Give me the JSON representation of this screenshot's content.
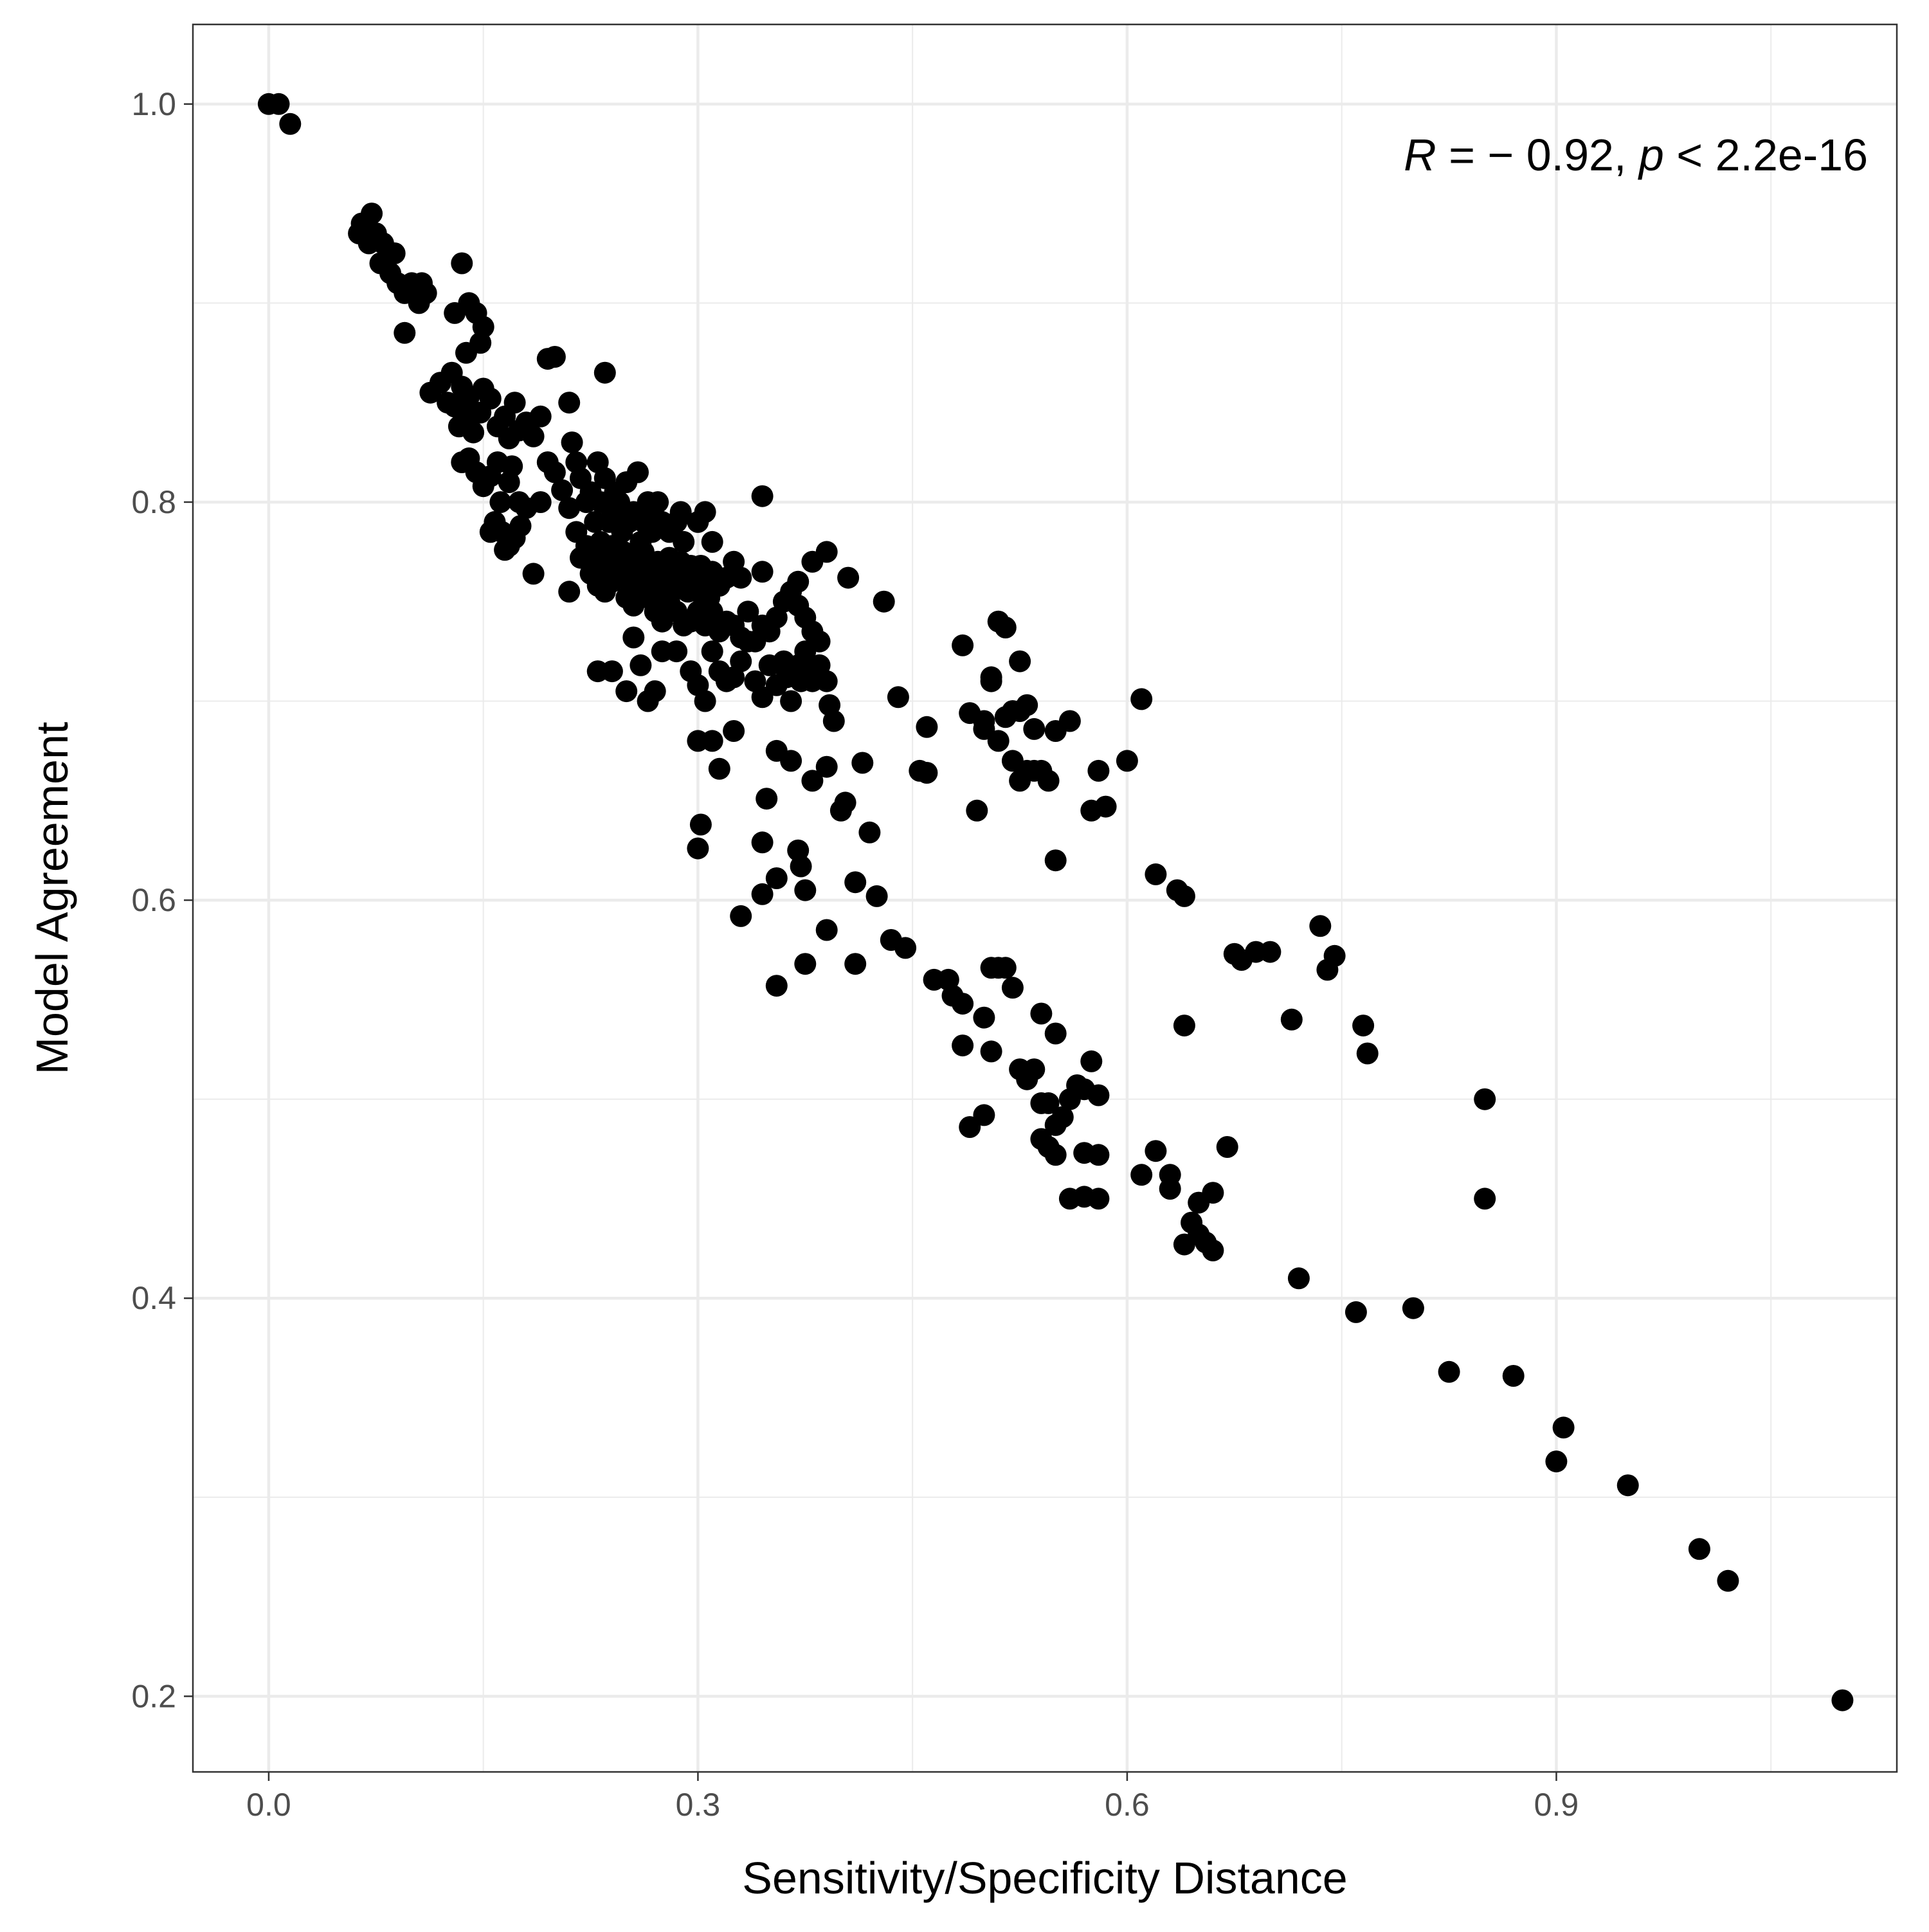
{
  "chart_data": {
    "type": "scatter",
    "title": "",
    "xlabel": "Sensitivity/Specificity Distance",
    "ylabel": "Model Agreement",
    "xlim": [
      -0.053,
      1.138
    ],
    "ylim": [
      0.162,
      1.04
    ],
    "x_ticks": [
      0.0,
      0.3,
      0.6,
      0.9
    ],
    "x_tick_labels": [
      "0.0",
      "0.3",
      "0.6",
      "0.9"
    ],
    "y_ticks": [
      0.2,
      0.4,
      0.6,
      0.8,
      1.0
    ],
    "y_tick_labels": [
      "0.2",
      "0.4",
      "0.6",
      "0.8",
      "1.0"
    ],
    "grid": true,
    "legend": "none",
    "marker_color": "#000000",
    "annotation": {
      "r_symbol": "R",
      "r_text": " = − 0.92, ",
      "p_symbol": "p",
      "p_text": " < 2.2e-16"
    },
    "points": [
      [
        0.0,
        1.0
      ],
      [
        0.007,
        1.0
      ],
      [
        0.015,
        0.99
      ],
      [
        0.063,
        0.935
      ],
      [
        0.065,
        0.94
      ],
      [
        0.072,
        0.945
      ],
      [
        0.075,
        0.935
      ],
      [
        0.07,
        0.93
      ],
      [
        0.078,
        0.92
      ],
      [
        0.08,
        0.93
      ],
      [
        0.085,
        0.915
      ],
      [
        0.088,
        0.925
      ],
      [
        0.09,
        0.91
      ],
      [
        0.095,
        0.905
      ],
      [
        0.095,
        0.885
      ],
      [
        0.1,
        0.91
      ],
      [
        0.107,
        0.91
      ],
      [
        0.105,
        0.9
      ],
      [
        0.11,
        0.905
      ],
      [
        0.135,
        0.92
      ],
      [
        0.14,
        0.9
      ],
      [
        0.145,
        0.895
      ],
      [
        0.15,
        0.888
      ],
      [
        0.138,
        0.875
      ],
      [
        0.148,
        0.88
      ],
      [
        0.13,
        0.895
      ],
      [
        0.113,
        0.855
      ],
      [
        0.12,
        0.86
      ],
      [
        0.125,
        0.85
      ],
      [
        0.128,
        0.865
      ],
      [
        0.13,
        0.848
      ],
      [
        0.135,
        0.858
      ],
      [
        0.14,
        0.853
      ],
      [
        0.133,
        0.838
      ],
      [
        0.138,
        0.843
      ],
      [
        0.143,
        0.835
      ],
      [
        0.148,
        0.845
      ],
      [
        0.15,
        0.857
      ],
      [
        0.155,
        0.852
      ],
      [
        0.16,
        0.838
      ],
      [
        0.165,
        0.843
      ],
      [
        0.168,
        0.832
      ],
      [
        0.172,
        0.85
      ],
      [
        0.175,
        0.836
      ],
      [
        0.18,
        0.84
      ],
      [
        0.185,
        0.833
      ],
      [
        0.19,
        0.843
      ],
      [
        0.195,
        0.872
      ],
      [
        0.2,
        0.873
      ],
      [
        0.21,
        0.85
      ],
      [
        0.235,
        0.865
      ],
      [
        0.135,
        0.82
      ],
      [
        0.14,
        0.822
      ],
      [
        0.145,
        0.815
      ],
      [
        0.15,
        0.808
      ],
      [
        0.155,
        0.813
      ],
      [
        0.16,
        0.82
      ],
      [
        0.162,
        0.8
      ],
      [
        0.168,
        0.81
      ],
      [
        0.17,
        0.818
      ],
      [
        0.175,
        0.8
      ],
      [
        0.18,
        0.797
      ],
      [
        0.158,
        0.79
      ],
      [
        0.163,
        0.785
      ],
      [
        0.168,
        0.778
      ],
      [
        0.172,
        0.782
      ],
      [
        0.176,
        0.788
      ],
      [
        0.155,
        0.785
      ],
      [
        0.165,
        0.776
      ],
      [
        0.185,
        0.764
      ],
      [
        0.19,
        0.8
      ],
      [
        0.195,
        0.82
      ],
      [
        0.2,
        0.815
      ],
      [
        0.205,
        0.806
      ],
      [
        0.21,
        0.797
      ],
      [
        0.212,
        0.83
      ],
      [
        0.215,
        0.82
      ],
      [
        0.218,
        0.812
      ],
      [
        0.222,
        0.8
      ],
      [
        0.225,
        0.805
      ],
      [
        0.228,
        0.79
      ],
      [
        0.23,
        0.82
      ],
      [
        0.232,
        0.8
      ],
      [
        0.235,
        0.812
      ],
      [
        0.238,
        0.79
      ],
      [
        0.24,
        0.795
      ],
      [
        0.242,
        0.805
      ],
      [
        0.245,
        0.8
      ],
      [
        0.247,
        0.785
      ],
      [
        0.25,
        0.81
      ],
      [
        0.252,
        0.79
      ],
      [
        0.255,
        0.795
      ],
      [
        0.258,
        0.815
      ],
      [
        0.26,
        0.78
      ],
      [
        0.262,
        0.79
      ],
      [
        0.265,
        0.8
      ],
      [
        0.268,
        0.785
      ],
      [
        0.27,
        0.79
      ],
      [
        0.272,
        0.8
      ],
      [
        0.275,
        0.79
      ],
      [
        0.28,
        0.785
      ],
      [
        0.285,
        0.79
      ],
      [
        0.288,
        0.795
      ],
      [
        0.29,
        0.78
      ],
      [
        0.3,
        0.79
      ],
      [
        0.305,
        0.795
      ],
      [
        0.31,
        0.78
      ],
      [
        0.215,
        0.785
      ],
      [
        0.218,
        0.772
      ],
      [
        0.222,
        0.778
      ],
      [
        0.225,
        0.764
      ],
      [
        0.228,
        0.77
      ],
      [
        0.232,
        0.78
      ],
      [
        0.235,
        0.772
      ],
      [
        0.238,
        0.765
      ],
      [
        0.24,
        0.778
      ],
      [
        0.243,
        0.77
      ],
      [
        0.245,
        0.762
      ],
      [
        0.248,
        0.775
      ],
      [
        0.25,
        0.768
      ],
      [
        0.252,
        0.76
      ],
      [
        0.255,
        0.772
      ],
      [
        0.258,
        0.765
      ],
      [
        0.26,
        0.758
      ],
      [
        0.262,
        0.775
      ],
      [
        0.265,
        0.77
      ],
      [
        0.268,
        0.762
      ],
      [
        0.27,
        0.755
      ],
      [
        0.272,
        0.77
      ],
      [
        0.275,
        0.765
      ],
      [
        0.278,
        0.758
      ],
      [
        0.28,
        0.772
      ],
      [
        0.283,
        0.765
      ],
      [
        0.285,
        0.758
      ],
      [
        0.288,
        0.77
      ],
      [
        0.29,
        0.763
      ],
      [
        0.293,
        0.755
      ],
      [
        0.295,
        0.768
      ],
      [
        0.298,
        0.762
      ],
      [
        0.3,
        0.755
      ],
      [
        0.302,
        0.768
      ],
      [
        0.305,
        0.76
      ],
      [
        0.308,
        0.752
      ],
      [
        0.31,
        0.765
      ],
      [
        0.315,
        0.758
      ],
      [
        0.32,
        0.762
      ],
      [
        0.325,
        0.77
      ],
      [
        0.33,
        0.762
      ],
      [
        0.345,
        0.765
      ],
      [
        0.21,
        0.755
      ],
      [
        0.23,
        0.758
      ],
      [
        0.235,
        0.755
      ],
      [
        0.24,
        0.76
      ],
      [
        0.25,
        0.752
      ],
      [
        0.255,
        0.748
      ],
      [
        0.265,
        0.752
      ],
      [
        0.27,
        0.745
      ],
      [
        0.275,
        0.74
      ],
      [
        0.28,
        0.75
      ],
      [
        0.285,
        0.745
      ],
      [
        0.29,
        0.738
      ],
      [
        0.295,
        0.74
      ],
      [
        0.3,
        0.745
      ],
      [
        0.305,
        0.738
      ],
      [
        0.31,
        0.745
      ],
      [
        0.315,
        0.735
      ],
      [
        0.32,
        0.74
      ],
      [
        0.325,
        0.738
      ],
      [
        0.33,
        0.732
      ],
      [
        0.335,
        0.745
      ],
      [
        0.34,
        0.73
      ],
      [
        0.345,
        0.738
      ],
      [
        0.35,
        0.735
      ],
      [
        0.355,
        0.742
      ],
      [
        0.36,
        0.75
      ],
      [
        0.365,
        0.755
      ],
      [
        0.37,
        0.748
      ],
      [
        0.375,
        0.742
      ],
      [
        0.38,
        0.735
      ],
      [
        0.385,
        0.73
      ],
      [
        0.37,
        0.76
      ],
      [
        0.39,
        0.775
      ],
      [
        0.38,
        0.77
      ],
      [
        0.405,
        0.762
      ],
      [
        0.345,
        0.803
      ],
      [
        0.23,
        0.715
      ],
      [
        0.24,
        0.715
      ],
      [
        0.25,
        0.705
      ],
      [
        0.255,
        0.732
      ],
      [
        0.26,
        0.718
      ],
      [
        0.265,
        0.7
      ],
      [
        0.27,
        0.705
      ],
      [
        0.275,
        0.725
      ],
      [
        0.285,
        0.725
      ],
      [
        0.295,
        0.715
      ],
      [
        0.3,
        0.708
      ],
      [
        0.305,
        0.7
      ],
      [
        0.31,
        0.725
      ],
      [
        0.315,
        0.715
      ],
      [
        0.32,
        0.71
      ],
      [
        0.325,
        0.712
      ],
      [
        0.33,
        0.72
      ],
      [
        0.335,
        0.73
      ],
      [
        0.34,
        0.71
      ],
      [
        0.345,
        0.702
      ],
      [
        0.35,
        0.718
      ],
      [
        0.355,
        0.708
      ],
      [
        0.36,
        0.72
      ],
      [
        0.362,
        0.712
      ],
      [
        0.365,
        0.7
      ],
      [
        0.37,
        0.718
      ],
      [
        0.372,
        0.71
      ],
      [
        0.375,
        0.725
      ],
      [
        0.378,
        0.715
      ],
      [
        0.38,
        0.71
      ],
      [
        0.385,
        0.718
      ],
      [
        0.39,
        0.71
      ],
      [
        0.395,
        0.69
      ],
      [
        0.392,
        0.698
      ],
      [
        0.43,
        0.75
      ],
      [
        0.3,
        0.68
      ],
      [
        0.31,
        0.68
      ],
      [
        0.315,
        0.666
      ],
      [
        0.325,
        0.685
      ],
      [
        0.355,
        0.675
      ],
      [
        0.365,
        0.67
      ],
      [
        0.38,
        0.66
      ],
      [
        0.39,
        0.667
      ],
      [
        0.4,
        0.645
      ],
      [
        0.403,
        0.649
      ],
      [
        0.415,
        0.669
      ],
      [
        0.42,
        0.634
      ],
      [
        0.302,
        0.638
      ],
      [
        0.3,
        0.626
      ],
      [
        0.345,
        0.629
      ],
      [
        0.348,
        0.651
      ],
      [
        0.37,
        0.625
      ],
      [
        0.372,
        0.617
      ],
      [
        0.355,
        0.611
      ],
      [
        0.345,
        0.603
      ],
      [
        0.375,
        0.605
      ],
      [
        0.41,
        0.609
      ],
      [
        0.425,
        0.602
      ],
      [
        0.33,
        0.592
      ],
      [
        0.39,
        0.585
      ],
      [
        0.375,
        0.568
      ],
      [
        0.41,
        0.568
      ],
      [
        0.355,
        0.557
      ],
      [
        0.435,
        0.58
      ],
      [
        0.445,
        0.576
      ],
      [
        0.44,
        0.702
      ],
      [
        0.455,
        0.665
      ],
      [
        0.46,
        0.664
      ],
      [
        0.46,
        0.687
      ],
      [
        0.485,
        0.728
      ],
      [
        0.49,
        0.694
      ],
      [
        0.5,
        0.69
      ],
      [
        0.505,
        0.71
      ],
      [
        0.505,
        0.712
      ],
      [
        0.51,
        0.74
      ],
      [
        0.515,
        0.737
      ],
      [
        0.5,
        0.686
      ],
      [
        0.51,
        0.68
      ],
      [
        0.515,
        0.692
      ],
      [
        0.52,
        0.695
      ],
      [
        0.525,
        0.72
      ],
      [
        0.525,
        0.695
      ],
      [
        0.53,
        0.698
      ],
      [
        0.535,
        0.686
      ],
      [
        0.52,
        0.67
      ],
      [
        0.525,
        0.66
      ],
      [
        0.53,
        0.665
      ],
      [
        0.535,
        0.665
      ],
      [
        0.54,
        0.665
      ],
      [
        0.545,
        0.66
      ],
      [
        0.55,
        0.685
      ],
      [
        0.56,
        0.69
      ],
      [
        0.495,
        0.645
      ],
      [
        0.575,
        0.645
      ],
      [
        0.58,
        0.665
      ],
      [
        0.585,
        0.647
      ],
      [
        0.55,
        0.62
      ],
      [
        0.6,
        0.67
      ],
      [
        0.61,
        0.701
      ],
      [
        0.62,
        0.613
      ],
      [
        0.635,
        0.605
      ],
      [
        0.64,
        0.602
      ],
      [
        0.64,
        0.537
      ],
      [
        0.465,
        0.56
      ],
      [
        0.475,
        0.56
      ],
      [
        0.478,
        0.552
      ],
      [
        0.485,
        0.548
      ],
      [
        0.505,
        0.566
      ],
      [
        0.51,
        0.566
      ],
      [
        0.515,
        0.566
      ],
      [
        0.52,
        0.556
      ],
      [
        0.5,
        0.541
      ],
      [
        0.505,
        0.524
      ],
      [
        0.485,
        0.527
      ],
      [
        0.525,
        0.515
      ],
      [
        0.53,
        0.51
      ],
      [
        0.535,
        0.515
      ],
      [
        0.54,
        0.543
      ],
      [
        0.55,
        0.533
      ],
      [
        0.49,
        0.486
      ],
      [
        0.5,
        0.492
      ],
      [
        0.54,
        0.498
      ],
      [
        0.545,
        0.498
      ],
      [
        0.55,
        0.487
      ],
      [
        0.555,
        0.491
      ],
      [
        0.56,
        0.5
      ],
      [
        0.565,
        0.507
      ],
      [
        0.57,
        0.505
      ],
      [
        0.575,
        0.519
      ],
      [
        0.58,
        0.502
      ],
      [
        0.54,
        0.48
      ],
      [
        0.545,
        0.476
      ],
      [
        0.55,
        0.472
      ],
      [
        0.57,
        0.473
      ],
      [
        0.58,
        0.472
      ],
      [
        0.56,
        0.45
      ],
      [
        0.57,
        0.451
      ],
      [
        0.58,
        0.45
      ],
      [
        0.62,
        0.474
      ],
      [
        0.61,
        0.462
      ],
      [
        0.63,
        0.462
      ],
      [
        0.63,
        0.455
      ],
      [
        0.65,
        0.448
      ],
      [
        0.66,
        0.453
      ],
      [
        0.67,
        0.476
      ],
      [
        0.64,
        0.427
      ],
      [
        0.645,
        0.438
      ],
      [
        0.65,
        0.432
      ],
      [
        0.655,
        0.428
      ],
      [
        0.66,
        0.424
      ],
      [
        0.675,
        0.573
      ],
      [
        0.68,
        0.57
      ],
      [
        0.69,
        0.574
      ],
      [
        0.7,
        0.574
      ],
      [
        0.715,
        0.54
      ],
      [
        0.72,
        0.41
      ],
      [
        0.735,
        0.587
      ],
      [
        0.74,
        0.565
      ],
      [
        0.745,
        0.572
      ],
      [
        0.76,
        0.393
      ],
      [
        0.765,
        0.537
      ],
      [
        0.768,
        0.523
      ],
      [
        0.8,
        0.395
      ],
      [
        0.825,
        0.363
      ],
      [
        0.85,
        0.5
      ],
      [
        0.85,
        0.45
      ],
      [
        0.87,
        0.361
      ],
      [
        0.9,
        0.318
      ],
      [
        0.905,
        0.335
      ],
      [
        0.95,
        0.306
      ],
      [
        1.0,
        0.274
      ],
      [
        1.02,
        0.258
      ],
      [
        1.1,
        0.198
      ]
    ]
  }
}
